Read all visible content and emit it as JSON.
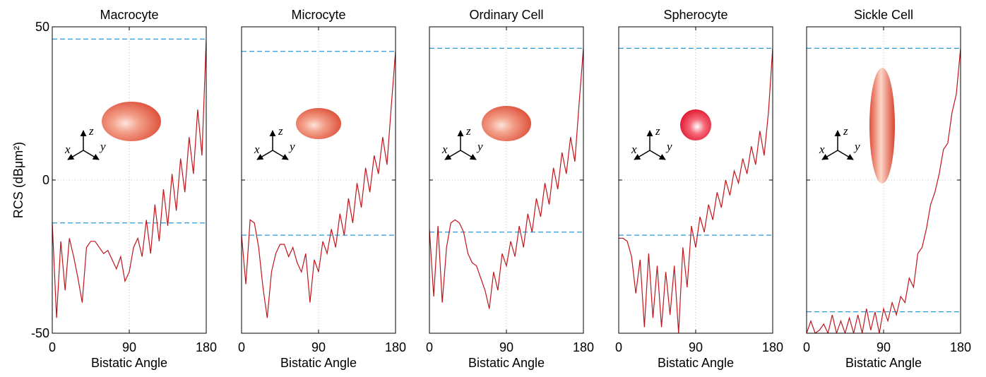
{
  "chart_data": [
    {
      "type": "line",
      "title": "Macrocyte",
      "xlabel": "Bistatic Angle",
      "ylabel": "RCS (dBμm²)",
      "x": [
        0,
        5,
        10,
        15,
        20,
        25,
        30,
        35,
        40,
        45,
        50,
        55,
        60,
        65,
        70,
        75,
        80,
        85,
        90,
        95,
        100,
        105,
        110,
        115,
        120,
        125,
        130,
        135,
        140,
        145,
        150,
        155,
        160,
        165,
        170,
        175,
        180
      ],
      "series": [
        {
          "color": "#c0151b",
          "values": [
            -14,
            -45,
            -20,
            -36,
            -19,
            -25,
            -32,
            -40,
            -22,
            -20,
            -20,
            -22,
            -24,
            -23,
            -26,
            -29,
            -25,
            -33,
            -30,
            -22,
            -19,
            -25,
            -13,
            -24,
            -8,
            -20,
            -3,
            -15,
            2,
            -10,
            7,
            -4,
            14,
            2,
            23,
            8,
            46
          ]
        }
      ],
      "reference_lines": {
        "color": "#2a9bd6",
        "values": [
          46,
          -14
        ]
      },
      "xlim": [
        0,
        180
      ],
      "ylim": [
        -50,
        50
      ],
      "xticks": [
        0,
        90,
        180
      ],
      "yticks": [
        -50,
        0,
        50
      ],
      "ytick_labels": true,
      "grid": true,
      "annotations": [
        "x",
        "y",
        "z"
      ]
    },
    {
      "type": "line",
      "title": "Microcyte",
      "xlabel": "Bistatic Angle",
      "x": [
        0,
        5,
        10,
        15,
        20,
        25,
        30,
        35,
        40,
        45,
        50,
        55,
        60,
        65,
        70,
        75,
        80,
        85,
        90,
        95,
        100,
        105,
        110,
        115,
        120,
        125,
        130,
        135,
        140,
        145,
        150,
        155,
        160,
        165,
        170,
        175,
        180
      ],
      "series": [
        {
          "color": "#c0151b",
          "values": [
            -18,
            -34,
            -13,
            -14,
            -22,
            -35,
            -45,
            -30,
            -24,
            -21,
            -21,
            -25,
            -22,
            -27,
            -30,
            -24,
            -40,
            -26,
            -30,
            -20,
            -24,
            -16,
            -22,
            -11,
            -18,
            -6,
            -14,
            -1,
            -9,
            4,
            -4,
            8,
            2,
            14,
            5,
            24,
            42
          ]
        }
      ],
      "reference_lines": {
        "color": "#2a9bd6",
        "values": [
          42,
          -18
        ]
      },
      "xlim": [
        0,
        180
      ],
      "ylim": [
        -50,
        50
      ],
      "xticks": [
        0,
        90,
        180
      ],
      "yticks": [
        -50,
        0,
        50
      ],
      "ytick_labels": false,
      "grid": true,
      "annotations": [
        "x",
        "y",
        "z"
      ]
    },
    {
      "type": "line",
      "title": "Ordinary Cell",
      "xlabel": "Bistatic Angle",
      "x": [
        0,
        5,
        10,
        15,
        20,
        25,
        30,
        35,
        40,
        45,
        50,
        55,
        60,
        65,
        70,
        75,
        80,
        85,
        90,
        95,
        100,
        105,
        110,
        115,
        120,
        125,
        130,
        135,
        140,
        145,
        150,
        155,
        160,
        165,
        170,
        175,
        180
      ],
      "series": [
        {
          "color": "#c0151b",
          "values": [
            -16,
            -38,
            -15,
            -40,
            -22,
            -14,
            -13,
            -14,
            -17,
            -24,
            -27,
            -28,
            -32,
            -36,
            -42,
            -30,
            -36,
            -24,
            -28,
            -20,
            -25,
            -15,
            -22,
            -11,
            -17,
            -6,
            -12,
            -1,
            -8,
            4,
            -3,
            9,
            2,
            14,
            6,
            25,
            43
          ]
        }
      ],
      "reference_lines": {
        "color": "#2a9bd6",
        "values": [
          43,
          -17
        ]
      },
      "xlim": [
        0,
        180
      ],
      "ylim": [
        -50,
        50
      ],
      "xticks": [
        0,
        90,
        180
      ],
      "yticks": [
        -50,
        0,
        50
      ],
      "ytick_labels": false,
      "grid": true,
      "annotations": [
        "x",
        "y",
        "z"
      ]
    },
    {
      "type": "line",
      "title": "Spherocyte",
      "xlabel": "Bistatic Angle",
      "x": [
        0,
        5,
        10,
        15,
        20,
        25,
        30,
        35,
        40,
        45,
        50,
        55,
        60,
        65,
        70,
        75,
        80,
        85,
        90,
        95,
        100,
        105,
        110,
        115,
        120,
        125,
        130,
        135,
        140,
        145,
        150,
        155,
        160,
        165,
        170,
        175,
        180
      ],
      "series": [
        {
          "color": "#c0151b",
          "values": [
            -19,
            -19,
            -20,
            -25,
            -37,
            -26,
            -48,
            -24,
            -45,
            -28,
            -48,
            -30,
            -44,
            -28,
            -50,
            -22,
            -35,
            -15,
            -22,
            -12,
            -17,
            -8,
            -13,
            -4,
            -9,
            0,
            -5,
            3,
            -1,
            7,
            2,
            11,
            5,
            16,
            8,
            22,
            43
          ]
        }
      ],
      "reference_lines": {
        "color": "#2a9bd6",
        "values": [
          43,
          -18
        ]
      },
      "xlim": [
        0,
        180
      ],
      "ylim": [
        -50,
        50
      ],
      "xticks": [
        0,
        90,
        180
      ],
      "yticks": [
        -50,
        0,
        50
      ],
      "ytick_labels": false,
      "grid": true,
      "annotations": [
        "x",
        "y",
        "z"
      ]
    },
    {
      "type": "line",
      "title": "Sickle Cell",
      "xlabel": "Bistatic Angle",
      "x": [
        0,
        5,
        10,
        15,
        20,
        25,
        30,
        35,
        40,
        45,
        50,
        55,
        60,
        65,
        70,
        75,
        80,
        85,
        90,
        95,
        100,
        105,
        110,
        115,
        120,
        125,
        130,
        135,
        140,
        145,
        150,
        155,
        160,
        165,
        170,
        175,
        180
      ],
      "series": [
        {
          "color": "#c0151b",
          "values": [
            -50,
            -46,
            -50,
            -49,
            -47,
            -50,
            -44,
            -50,
            -46,
            -50,
            -45,
            -50,
            -44,
            -50,
            -42,
            -49,
            -43,
            -50,
            -42,
            -46,
            -40,
            -44,
            -38,
            -40,
            -32,
            -35,
            -24,
            -22,
            -16,
            -8,
            -4,
            2,
            10,
            12,
            22,
            28,
            43
          ]
        }
      ],
      "reference_lines": {
        "color": "#2a9bd6",
        "values": [
          43,
          -43
        ]
      },
      "xlim": [
        0,
        180
      ],
      "ylim": [
        -50,
        50
      ],
      "xticks": [
        0,
        90,
        180
      ],
      "yticks": [
        -50,
        0,
        50
      ],
      "ytick_labels": false,
      "grid": true,
      "annotations": [
        "x",
        "y",
        "z"
      ]
    }
  ]
}
